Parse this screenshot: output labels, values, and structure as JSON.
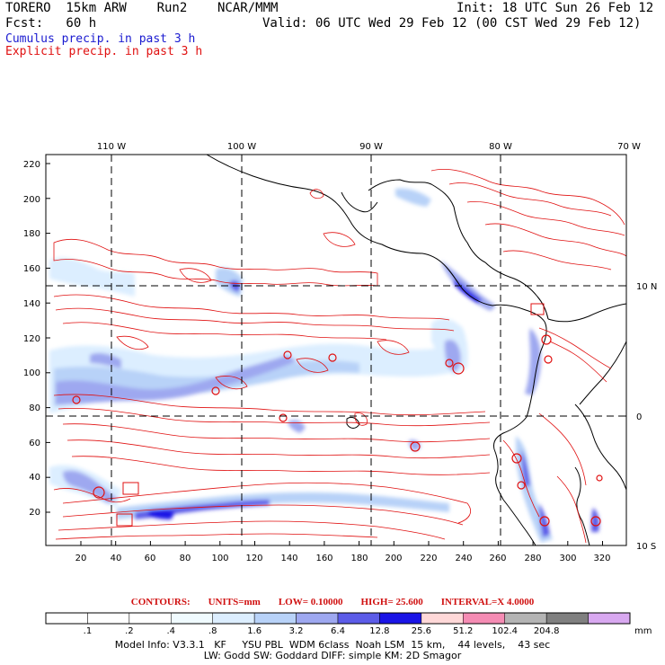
{
  "header": {
    "title_line": "TORERO  15km ARW    Run2    NCAR/MMM",
    "init": "Init: 18 UTC Sun 26 Feb 12",
    "fcst": "Fcst:   60 h",
    "valid": "Valid: 06 UTC Wed 29 Feb 12 (00 CST Wed 29 Feb 12)",
    "cumulus_label": "Cumulus precip. in past 3 h",
    "explicit_label": "Explicit precip. in past 3 h"
  },
  "axes": {
    "top_lon_labels": [
      "110 W",
      "100 W",
      "90 W",
      "80 W",
      "70 W"
    ],
    "right_lat_labels": [
      "10 N",
      "0",
      "10 S"
    ],
    "left_ticks": [
      "220",
      "200",
      "180",
      "160",
      "140",
      "120",
      "100",
      "80",
      "60",
      "40",
      "20"
    ],
    "bottom_ticks": [
      "20",
      "40",
      "60",
      "80",
      "100",
      "120",
      "140",
      "160",
      "180",
      "200",
      "220",
      "240",
      "260",
      "280",
      "300",
      "320"
    ]
  },
  "contour_info": {
    "contours": "CONTOURS:",
    "units": "UNITS=mm",
    "low": "LOW= 0.10000",
    "high": "HIGH=  25.600",
    "interval": "INTERVAL=X  4.0000"
  },
  "legend": {
    "thresholds": [
      ".1",
      ".2",
      ".4",
      ".8",
      "1.6",
      "3.2",
      "6.4",
      "12.8",
      "25.6",
      "51.2",
      "102.4",
      "204.8"
    ],
    "unit": "mm",
    "colors": [
      "#ffffff",
      "#ffffff",
      "#ffffff",
      "#f0fbff",
      "#dceeff",
      "#b8d2f8",
      "#9ea8f0",
      "#5c5ce8",
      "#1a14e6",
      "#ffd8d8",
      "#f58cb4",
      "#b4b4b4",
      "#808080",
      "#d8a8f0"
    ]
  },
  "model_info": {
    "line1": "Model Info: V3.3.1   KF     YSU PBL  WDM 6class  Noah LSM  15 km,    44 levels,    43 sec",
    "line2": "LW: Godd SW: Goddard DIFF: simple KM: 2D Smagor"
  }
}
